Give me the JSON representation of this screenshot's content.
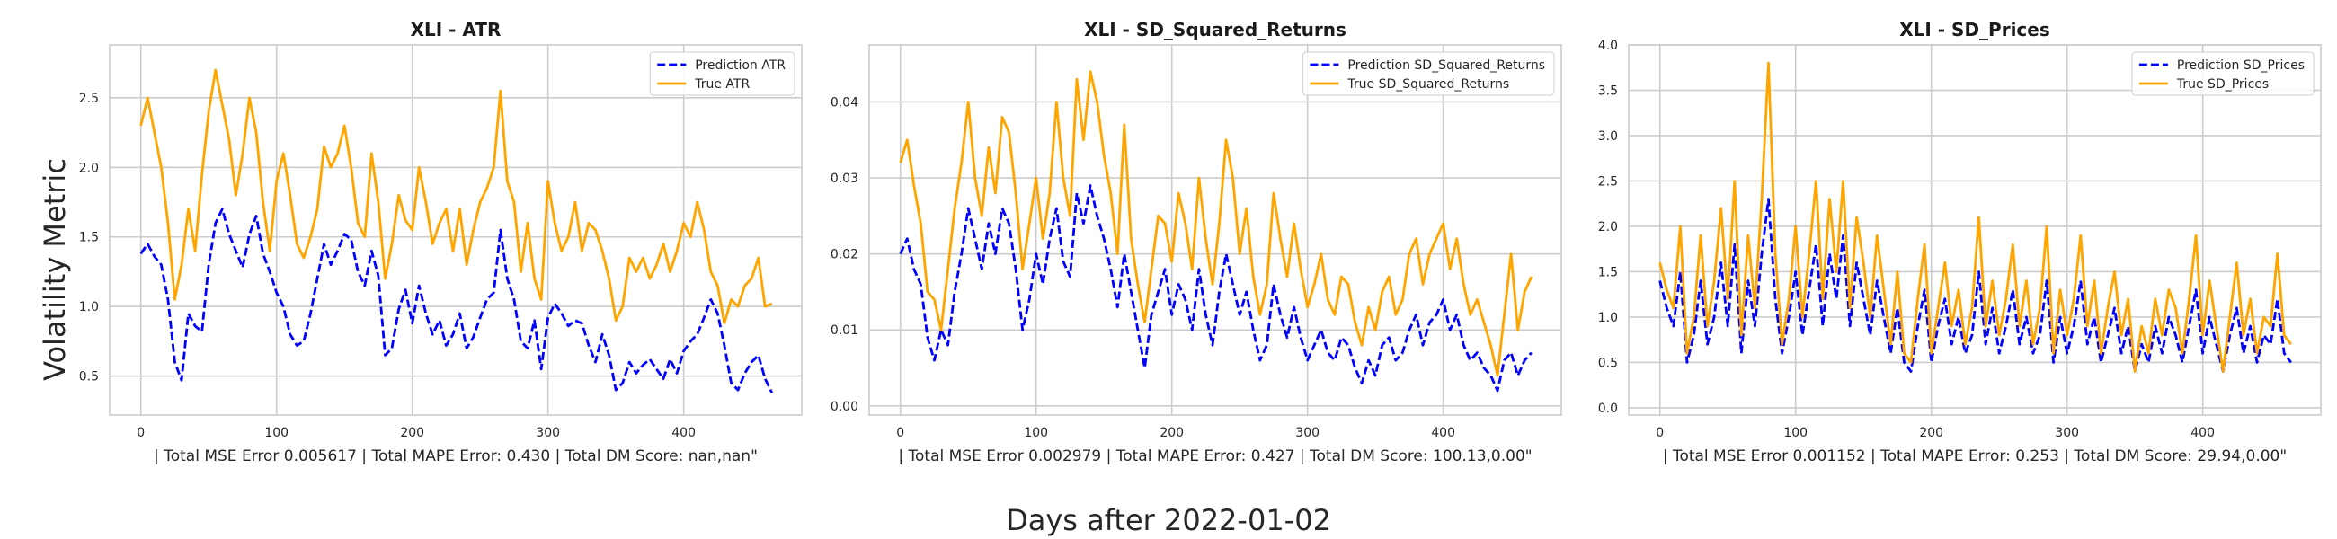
{
  "figure": {
    "ylabel": "Volatility Metric",
    "xlabel": "Days after 2022-01-02"
  },
  "colors": {
    "prediction": "#0000ff",
    "true": "#ffa500",
    "grid": "#cccccc",
    "axes": "#cccccc"
  },
  "chart_data": [
    {
      "type": "line",
      "title": "XLI - ATR",
      "xlabel": "| Total MSE Error 0.005617 | Total MAPE Error: 0.430 | Total DM Score: nan,nan\"",
      "ylabel": "Volatility Metric",
      "xlim": [
        -23,
        487
      ],
      "ylim": [
        0.22,
        2.88
      ],
      "xticks": [
        0,
        100,
        200,
        300,
        400
      ],
      "yticks": [
        0.5,
        1.0,
        1.5,
        2.0,
        2.5
      ],
      "yticklabels": [
        "0.5",
        "1.0",
        "1.5",
        "2.0",
        "2.5"
      ],
      "grid": true,
      "legend_position": "top-right",
      "x": [
        0,
        5,
        10,
        15,
        20,
        25,
        30,
        35,
        40,
        45,
        50,
        55,
        60,
        65,
        70,
        75,
        80,
        85,
        90,
        95,
        100,
        105,
        110,
        115,
        120,
        125,
        130,
        135,
        140,
        145,
        150,
        155,
        160,
        165,
        170,
        175,
        180,
        185,
        190,
        195,
        200,
        205,
        210,
        215,
        220,
        225,
        230,
        235,
        240,
        245,
        250,
        255,
        260,
        265,
        270,
        275,
        280,
        285,
        290,
        295,
        300,
        305,
        310,
        315,
        320,
        325,
        330,
        335,
        340,
        345,
        350,
        355,
        360,
        365,
        370,
        375,
        380,
        385,
        390,
        395,
        400,
        405,
        410,
        415,
        420,
        425,
        430,
        435,
        440,
        445,
        450,
        455,
        460,
        465
      ],
      "series": [
        {
          "name": "Prediction ATR",
          "style": "dashed",
          "values": [
            1.38,
            1.45,
            1.36,
            1.3,
            1.05,
            0.6,
            0.47,
            0.95,
            0.86,
            0.82,
            1.3,
            1.6,
            1.7,
            1.52,
            1.4,
            1.28,
            1.52,
            1.65,
            1.38,
            1.25,
            1.1,
            1.0,
            0.8,
            0.72,
            0.75,
            0.95,
            1.2,
            1.45,
            1.3,
            1.4,
            1.52,
            1.48,
            1.25,
            1.15,
            1.4,
            1.22,
            0.65,
            0.7,
            0.98,
            1.12,
            0.88,
            1.15,
            0.95,
            0.8,
            0.9,
            0.72,
            0.8,
            0.95,
            0.7,
            0.78,
            0.92,
            1.05,
            1.1,
            1.55,
            1.2,
            1.05,
            0.75,
            0.7,
            0.9,
            0.55,
            0.92,
            1.02,
            0.95,
            0.86,
            0.9,
            0.88,
            0.72,
            0.6,
            0.8,
            0.65,
            0.4,
            0.45,
            0.6,
            0.52,
            0.58,
            0.62,
            0.55,
            0.48,
            0.62,
            0.52,
            0.68,
            0.75,
            0.8,
            0.92,
            1.05,
            0.95,
            0.72,
            0.45,
            0.4,
            0.52,
            0.6,
            0.65,
            0.48,
            0.38
          ]
        },
        {
          "name": "True ATR",
          "style": "solid",
          "values": [
            2.3,
            2.5,
            2.25,
            2.0,
            1.6,
            1.05,
            1.3,
            1.7,
            1.4,
            1.95,
            2.4,
            2.7,
            2.45,
            2.2,
            1.8,
            2.1,
            2.5,
            2.25,
            1.75,
            1.4,
            1.9,
            2.1,
            1.8,
            1.45,
            1.35,
            1.5,
            1.7,
            2.15,
            2.0,
            2.1,
            2.3,
            2.0,
            1.6,
            1.5,
            2.1,
            1.75,
            1.2,
            1.45,
            1.8,
            1.62,
            1.55,
            2.0,
            1.75,
            1.45,
            1.6,
            1.7,
            1.4,
            1.7,
            1.3,
            1.55,
            1.75,
            1.85,
            2.0,
            2.55,
            1.9,
            1.75,
            1.25,
            1.6,
            1.2,
            1.05,
            1.9,
            1.6,
            1.4,
            1.5,
            1.75,
            1.4,
            1.6,
            1.55,
            1.4,
            1.2,
            0.9,
            1.0,
            1.35,
            1.25,
            1.35,
            1.2,
            1.3,
            1.45,
            1.25,
            1.4,
            1.6,
            1.5,
            1.75,
            1.55,
            1.25,
            1.15,
            0.88,
            1.05,
            1.0,
            1.15,
            1.2,
            1.35,
            1.0,
            1.02
          ]
        }
      ]
    },
    {
      "type": "line",
      "title": "XLI - SD_Squared_Returns",
      "xlabel": "| Total MSE Error 0.002979 | Total MAPE Error: 0.427 | Total DM Score: 100.13,0.00\"",
      "xlim": [
        -23,
        487
      ],
      "ylim": [
        -0.0012,
        0.0475
      ],
      "xticks": [
        0,
        100,
        200,
        300,
        400
      ],
      "yticks": [
        0.0,
        0.01,
        0.02,
        0.03,
        0.04
      ],
      "yticklabels": [
        "0.00",
        "0.01",
        "0.02",
        "0.03",
        "0.04"
      ],
      "grid": true,
      "legend_position": "top-right",
      "x": [
        0,
        5,
        10,
        15,
        20,
        25,
        30,
        35,
        40,
        45,
        50,
        55,
        60,
        65,
        70,
        75,
        80,
        85,
        90,
        95,
        100,
        105,
        110,
        115,
        120,
        125,
        130,
        135,
        140,
        145,
        150,
        155,
        160,
        165,
        170,
        175,
        180,
        185,
        190,
        195,
        200,
        205,
        210,
        215,
        220,
        225,
        230,
        235,
        240,
        245,
        250,
        255,
        260,
        265,
        270,
        275,
        280,
        285,
        290,
        295,
        300,
        305,
        310,
        315,
        320,
        325,
        330,
        335,
        340,
        345,
        350,
        355,
        360,
        365,
        370,
        375,
        380,
        385,
        390,
        395,
        400,
        405,
        410,
        415,
        420,
        425,
        430,
        435,
        440,
        445,
        450,
        455,
        460,
        465
      ],
      "series": [
        {
          "name": "Prediction SD_Squared_Returns",
          "style": "dashed",
          "values": [
            0.02,
            0.022,
            0.018,
            0.016,
            0.009,
            0.006,
            0.01,
            0.008,
            0.015,
            0.02,
            0.026,
            0.022,
            0.018,
            0.024,
            0.02,
            0.026,
            0.024,
            0.018,
            0.01,
            0.014,
            0.02,
            0.016,
            0.022,
            0.026,
            0.019,
            0.017,
            0.028,
            0.024,
            0.029,
            0.025,
            0.022,
            0.018,
            0.013,
            0.02,
            0.015,
            0.01,
            0.005,
            0.012,
            0.015,
            0.018,
            0.012,
            0.016,
            0.014,
            0.01,
            0.018,
            0.012,
            0.008,
            0.015,
            0.02,
            0.016,
            0.012,
            0.015,
            0.01,
            0.006,
            0.008,
            0.016,
            0.012,
            0.009,
            0.013,
            0.009,
            0.006,
            0.008,
            0.01,
            0.007,
            0.006,
            0.009,
            0.008,
            0.005,
            0.003,
            0.006,
            0.004,
            0.008,
            0.009,
            0.006,
            0.007,
            0.01,
            0.012,
            0.008,
            0.011,
            0.012,
            0.014,
            0.01,
            0.012,
            0.008,
            0.006,
            0.007,
            0.005,
            0.004,
            0.002,
            0.006,
            0.007,
            0.004,
            0.006,
            0.007
          ]
        },
        {
          "name": "True SD_Squared_Returns",
          "style": "solid",
          "values": [
            0.032,
            0.035,
            0.029,
            0.024,
            0.015,
            0.014,
            0.01,
            0.018,
            0.026,
            0.032,
            0.04,
            0.03,
            0.025,
            0.034,
            0.028,
            0.038,
            0.036,
            0.028,
            0.018,
            0.024,
            0.03,
            0.022,
            0.028,
            0.04,
            0.03,
            0.025,
            0.043,
            0.035,
            0.044,
            0.04,
            0.033,
            0.028,
            0.02,
            0.037,
            0.022,
            0.016,
            0.011,
            0.018,
            0.025,
            0.024,
            0.019,
            0.028,
            0.024,
            0.018,
            0.03,
            0.022,
            0.016,
            0.024,
            0.035,
            0.03,
            0.02,
            0.026,
            0.017,
            0.012,
            0.016,
            0.028,
            0.022,
            0.017,
            0.024,
            0.018,
            0.013,
            0.016,
            0.02,
            0.014,
            0.012,
            0.017,
            0.016,
            0.011,
            0.008,
            0.013,
            0.01,
            0.015,
            0.017,
            0.012,
            0.014,
            0.02,
            0.022,
            0.016,
            0.02,
            0.022,
            0.024,
            0.018,
            0.022,
            0.016,
            0.012,
            0.014,
            0.011,
            0.008,
            0.004,
            0.012,
            0.02,
            0.01,
            0.015,
            0.017
          ]
        }
      ]
    },
    {
      "type": "line",
      "title": "XLI - SD_Prices",
      "xlabel": "| Total MSE Error 0.001152 | Total MAPE Error: 0.253 | Total DM Score: 29.94,0.00\"",
      "xlim": [
        -23,
        487
      ],
      "ylim": [
        -0.08,
        4.0
      ],
      "xticks": [
        0,
        100,
        200,
        300,
        400
      ],
      "yticks": [
        0.0,
        0.5,
        1.0,
        1.5,
        2.0,
        2.5,
        3.0,
        3.5,
        4.0
      ],
      "yticklabels": [
        "0.0",
        "0.5",
        "1.0",
        "1.5",
        "2.0",
        "2.5",
        "3.0",
        "3.5",
        "4.0"
      ],
      "grid": true,
      "legend_position": "top-right",
      "x": [
        0,
        5,
        10,
        15,
        20,
        25,
        30,
        35,
        40,
        45,
        50,
        55,
        60,
        65,
        70,
        75,
        80,
        85,
        90,
        95,
        100,
        105,
        110,
        115,
        120,
        125,
        130,
        135,
        140,
        145,
        150,
        155,
        160,
        165,
        170,
        175,
        180,
        185,
        190,
        195,
        200,
        205,
        210,
        215,
        220,
        225,
        230,
        235,
        240,
        245,
        250,
        255,
        260,
        265,
        270,
        275,
        280,
        285,
        290,
        295,
        300,
        305,
        310,
        315,
        320,
        325,
        330,
        335,
        340,
        345,
        350,
        355,
        360,
        365,
        370,
        375,
        380,
        385,
        390,
        395,
        400,
        405,
        410,
        415,
        420,
        425,
        430,
        435,
        440,
        445,
        450,
        455,
        460,
        465
      ],
      "series": [
        {
          "name": "Prediction SD_Prices",
          "style": "dashed",
          "values": [
            1.4,
            1.1,
            0.9,
            1.5,
            0.5,
            0.8,
            1.4,
            0.7,
            1.0,
            1.6,
            0.9,
            1.8,
            0.6,
            1.4,
            0.9,
            1.7,
            2.3,
            1.2,
            0.6,
            1.0,
            1.5,
            0.8,
            1.3,
            1.8,
            0.9,
            1.7,
            1.2,
            1.9,
            0.9,
            1.6,
            1.2,
            0.8,
            1.4,
            1.0,
            0.6,
            1.1,
            0.5,
            0.4,
            0.9,
            1.3,
            0.5,
            0.9,
            1.2,
            0.7,
            1.0,
            0.6,
            0.8,
            1.5,
            0.7,
            1.1,
            0.6,
            0.9,
            1.3,
            0.7,
            1.0,
            0.6,
            0.8,
            1.4,
            0.5,
            1.0,
            0.6,
            0.9,
            1.4,
            0.7,
            1.0,
            0.5,
            0.8,
            1.1,
            0.6,
            0.9,
            0.4,
            0.7,
            0.5,
            0.9,
            0.6,
            1.0,
            0.8,
            0.5,
            0.9,
            1.3,
            0.6,
            1.0,
            0.7,
            0.4,
            0.8,
            1.1,
            0.6,
            0.9,
            0.5,
            0.8,
            0.7,
            1.2,
            0.6,
            0.5
          ]
        },
        {
          "name": "True SD_Prices",
          "style": "solid",
          "values": [
            1.6,
            1.3,
            1.1,
            2.0,
            0.6,
            1.0,
            1.9,
            0.9,
            1.4,
            2.2,
            1.2,
            2.5,
            0.8,
            1.9,
            1.1,
            2.3,
            3.8,
            1.7,
            0.7,
            1.2,
            2.0,
            1.0,
            1.7,
            2.5,
            1.2,
            2.3,
            1.5,
            2.5,
            1.1,
            2.1,
            1.6,
            1.0,
            1.9,
            1.3,
            0.7,
            1.5,
            0.6,
            0.5,
            1.2,
            1.8,
            0.6,
            1.1,
            1.6,
            0.9,
            1.3,
            0.7,
            1.1,
            2.1,
            0.9,
            1.4,
            0.8,
            1.2,
            1.8,
            0.9,
            1.4,
            0.7,
            1.1,
            2.0,
            0.6,
            1.3,
            0.8,
            1.2,
            1.9,
            0.9,
            1.4,
            0.6,
            1.1,
            1.5,
            0.8,
            1.2,
            0.4,
            0.9,
            0.6,
            1.2,
            0.8,
            1.3,
            1.1,
            0.6,
            1.2,
            1.9,
            0.8,
            1.4,
            0.9,
            0.4,
            1.0,
            1.6,
            0.8,
            1.2,
            0.6,
            1.0,
            0.9,
            1.7,
            0.8,
            0.7
          ]
        }
      ]
    }
  ]
}
